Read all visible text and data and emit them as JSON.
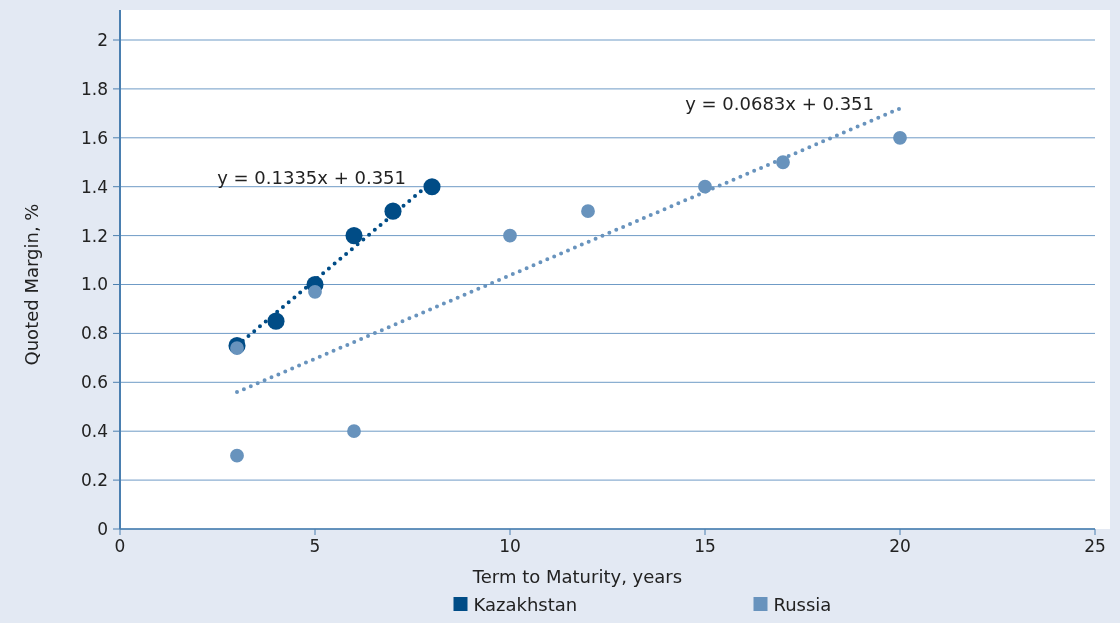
{
  "chart_data": {
    "type": "scatter",
    "xlabel": "Term to Maturity, years",
    "ylabel": "Quoted Margin, %",
    "xlim": [
      0,
      25
    ],
    "xticks": [
      0,
      5,
      10,
      15,
      20,
      25
    ],
    "ylim": [
      0,
      2
    ],
    "yticks": [
      {
        "value": 0,
        "label": "0"
      },
      {
        "value": 0.2,
        "label": "0.2"
      },
      {
        "value": 0.4,
        "label": "0.4"
      },
      {
        "value": 0.6,
        "label": "0.6"
      },
      {
        "value": 0.8,
        "label": "0.8"
      },
      {
        "value": 1,
        "label": "1.0"
      },
      {
        "value": 1.2,
        "label": "1.2"
      },
      {
        "value": 1.4,
        "label": "1.4"
      },
      {
        "value": 1.6,
        "label": "1.6"
      },
      {
        "value": 1.8,
        "label": "1.8"
      },
      {
        "value": 2,
        "label": "2"
      }
    ],
    "grid": "y",
    "legend": "bottom",
    "marker": "circle",
    "series": [
      {
        "name": "Kazakhstan",
        "color": "#004c86",
        "x": [
          3,
          4,
          5,
          6,
          7,
          8
        ],
        "values": [
          0.75,
          0.85,
          1.0,
          1.2,
          1.3,
          1.4
        ]
      },
      {
        "name": "Russia",
        "color": "#6893bd",
        "x": [
          3,
          3,
          5,
          6,
          10,
          12,
          15,
          17,
          20
        ],
        "values": [
          0.74,
          0.3,
          0.97,
          0.4,
          1.2,
          1.3,
          1.4,
          1.5,
          1.6
        ]
      },
      {
        "type": "line",
        "color": "#004c86",
        "x": [
          3,
          8
        ],
        "values": [
          0.75,
          1.42
        ],
        "marker": "none",
        "line_style": "dotted"
      },
      {
        "type": "line",
        "color": "#6893bd",
        "x": [
          3,
          20
        ],
        "values": [
          0.56,
          1.72
        ],
        "marker": "none",
        "line_style": "dotted"
      }
    ],
    "annotations": [
      "y = 0.1335x + 0.351",
      "y = 0.0683x + 0.351"
    ]
  }
}
